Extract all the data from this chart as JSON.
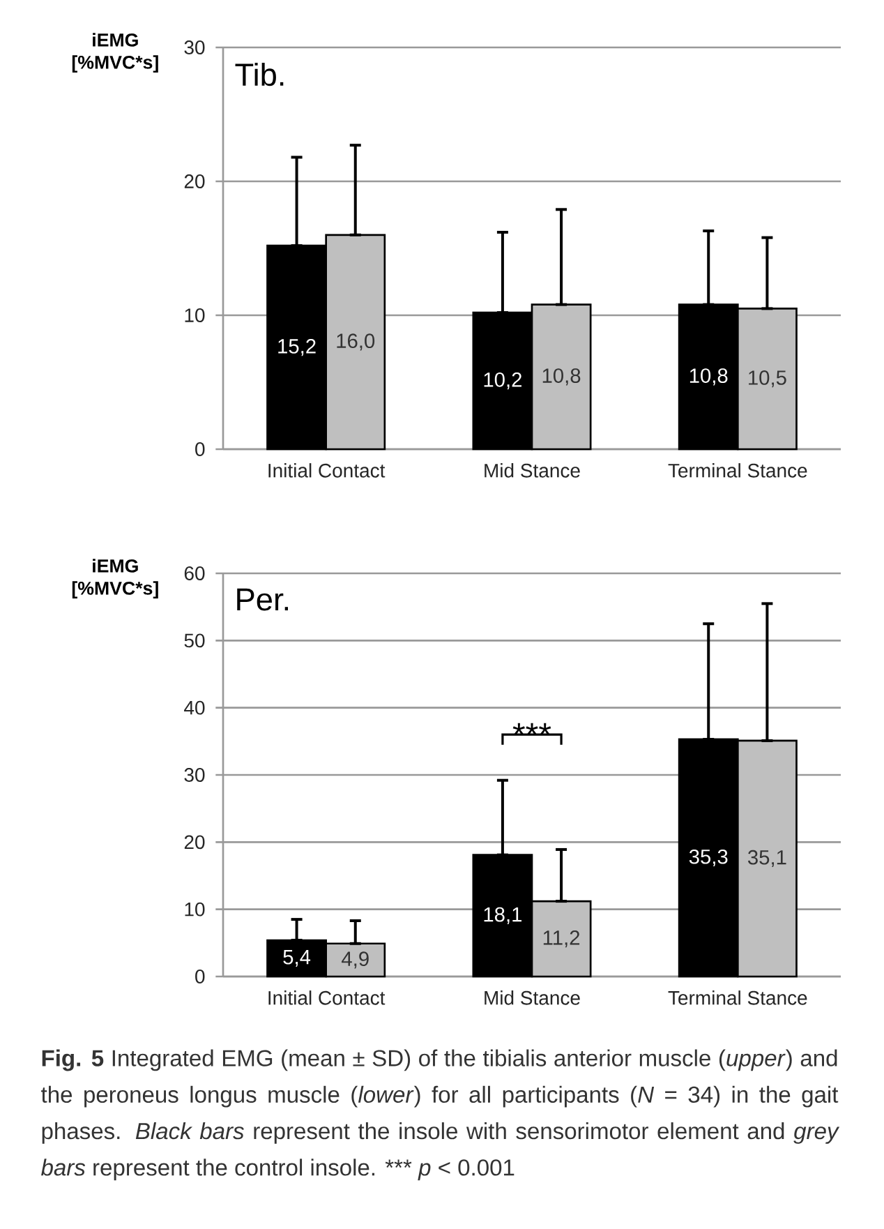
{
  "chart_data": [
    {
      "type": "bar",
      "title": "Tib.",
      "ylabel": "iEMG [%MVC*s]",
      "categories": [
        "Initial Contact",
        "Mid Stance",
        "Terminal Stance"
      ],
      "series": [
        {
          "color": "#000000",
          "values": [
            15.2,
            10.2,
            10.8
          ],
          "errors": [
            [
              15.2,
              21.8
            ],
            [
              10.2,
              16.2
            ],
            [
              10.8,
              16.3
            ]
          ],
          "value_labels": [
            "15,2",
            "10,2",
            "10,8"
          ]
        },
        {
          "color": "#bfbfbf",
          "values": [
            16.0,
            10.8,
            10.5
          ],
          "errors": [
            [
              16.0,
              22.7
            ],
            [
              10.8,
              17.9
            ],
            [
              10.5,
              15.8
            ]
          ],
          "value_labels": [
            "16,0",
            "10,8",
            "10,5"
          ]
        }
      ],
      "ylim": [
        0,
        30
      ],
      "yticks": [
        0,
        10,
        20,
        30
      ],
      "grid": "y"
    },
    {
      "type": "bar",
      "title": "Per.",
      "ylabel": "iEMG [%MVC*s]",
      "categories": [
        "Initial Contact",
        "Mid Stance",
        "Terminal Stance"
      ],
      "series": [
        {
          "color": "#000000",
          "values": [
            5.4,
            18.1,
            35.3
          ],
          "errors": [
            [
              5.4,
              8.5
            ],
            [
              18.1,
              29.2
            ],
            [
              35.3,
              52.5
            ]
          ],
          "value_labels": [
            "5,4",
            "18,1",
            "35,3"
          ]
        },
        {
          "color": "#bfbfbf",
          "values": [
            4.9,
            11.2,
            35.1
          ],
          "errors": [
            [
              4.9,
              8.3
            ],
            [
              11.2,
              18.9
            ],
            [
              35.1,
              55.5
            ]
          ],
          "value_labels": [
            "4,9",
            "11,2",
            "35,1"
          ]
        }
      ],
      "ylim": [
        0,
        60
      ],
      "yticks": [
        0,
        10,
        20,
        30,
        40,
        50,
        60
      ],
      "grid": "y",
      "annotations": [
        "***",
        "**Fig. 5** Integrated EMG (mean ± SD) of the tibialis anterior muscle (*upper*) and the peroneus longus muscle (*lower*) for all participants (*N* = 34) in the gait phases. *Black bars* represent the insole with sensorimotor element and *grey bars* represent the control insole. *** *p* < 0.001"
      ]
    }
  ]
}
